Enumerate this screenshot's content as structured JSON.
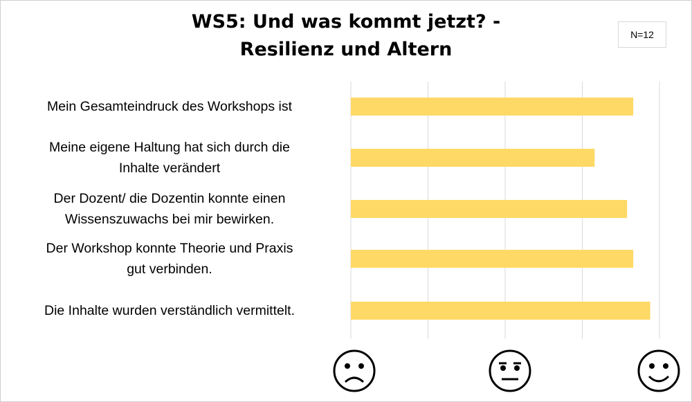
{
  "title": [
    "WS5: Und was kommt jetzt? -",
    "Resilienz und Altern"
  ],
  "sample_note": "N=12",
  "chart_data": {
    "type": "bar",
    "orientation": "horizontal",
    "title": "WS5: Und was kommt jetzt? - Resilienz und Altern",
    "categories": [
      [
        "Mein Gesamteindruck des Workshops ist"
      ],
      [
        "Meine eigene Haltung hat sich durch die",
        "Inhalte verändert"
      ],
      [
        "Der Dozent/ die Dozentin konnte einen",
        "Wissenszuwachs bei mir bewirken."
      ],
      [
        "Der Workshop konnte Theorie und Praxis",
        "gut verbinden."
      ],
      [
        "Die Inhalte wurden verständlich vermittelt."
      ]
    ],
    "values": [
      2.83,
      2.58,
      2.79,
      2.83,
      2.94
    ],
    "xlim": [
      1,
      3
    ],
    "grid": true,
    "bar_color": "#FFD966",
    "x_tick_icons": [
      "sad-face-icon",
      "neutral-face-icon",
      "happy-face-icon"
    ]
  }
}
